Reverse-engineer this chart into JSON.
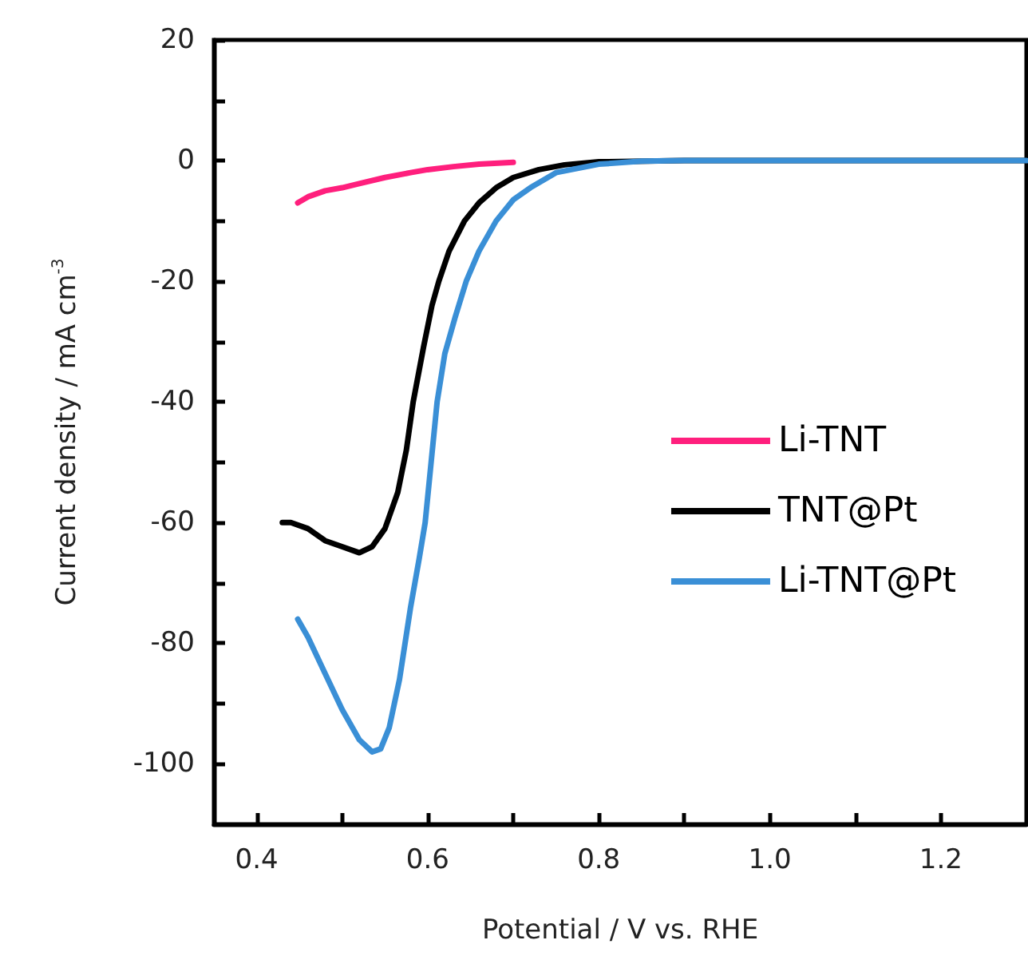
{
  "chart_data": {
    "type": "line",
    "xlabel": "Potential / V vs. RHE",
    "ylabel": "Current density / mA cm$^{-3}$",
    "xlim": [
      0.35,
      1.3
    ],
    "ylim": [
      -110,
      20
    ],
    "xticks": [
      {
        "value": 0.4,
        "label": "0.4"
      },
      {
        "value": 0.5,
        "label": null
      },
      {
        "value": 0.6,
        "label": "0.6"
      },
      {
        "value": 0.7,
        "label": null
      },
      {
        "value": 0.8,
        "label": "0.8"
      },
      {
        "value": 0.9,
        "label": null
      },
      {
        "value": 1.0,
        "label": "1.0"
      },
      {
        "value": 1.1,
        "label": null
      },
      {
        "value": 1.2,
        "label": "1.2"
      }
    ],
    "yticks": [
      -100,
      {
        "value": -90,
        "label": null
      },
      -80,
      {
        "value": -70,
        "label": null
      },
      -60,
      {
        "value": -50,
        "label": null
      },
      -40,
      {
        "value": -30,
        "label": null
      },
      -20,
      {
        "value": -10,
        "label": null
      },
      0,
      {
        "value": 10,
        "label": null
      },
      20
    ],
    "grid": false,
    "legend": "right",
    "marker": "none",
    "line_style": "solid",
    "series": [
      {
        "name": "Li-TNT",
        "color": "#ff1f7d",
        "x": [
          0.448,
          0.46,
          0.48,
          0.5,
          0.52,
          0.55,
          0.58,
          0.6,
          0.63,
          0.66,
          0.7
        ],
        "values": [
          -7,
          -6,
          -5,
          -4.5,
          -3.8,
          -2.8,
          -2,
          -1.5,
          -1,
          -0.6,
          -0.3
        ]
      },
      {
        "name": "TNT@Pt",
        "color": "#000000",
        "x": [
          0.43,
          0.44,
          0.46,
          0.48,
          0.5,
          0.52,
          0.535,
          0.55,
          0.565,
          0.575,
          0.583,
          0.595,
          0.605,
          0.613,
          0.625,
          0.643,
          0.66,
          0.68,
          0.7,
          0.73,
          0.76,
          0.8,
          0.9,
          1.0,
          1.3
        ],
        "values": [
          -60,
          -60,
          -61,
          -63,
          -64,
          -65,
          -64,
          -61,
          -55,
          -48,
          -40,
          -31,
          -24,
          -20,
          -15,
          -10,
          -7,
          -4.5,
          -2.8,
          -1.5,
          -0.7,
          -0.2,
          0,
          0,
          0
        ]
      },
      {
        "name": "Li-TNT@Pt",
        "color": "#3a8fd6",
        "x": [
          0.448,
          0.46,
          0.48,
          0.5,
          0.52,
          0.535,
          0.545,
          0.555,
          0.567,
          0.58,
          0.59,
          0.597,
          0.604,
          0.611,
          0.62,
          0.632,
          0.645,
          0.66,
          0.68,
          0.7,
          0.72,
          0.75,
          0.8,
          0.85,
          0.9,
          1.0,
          1.3
        ],
        "values": [
          -76,
          -79,
          -85,
          -91,
          -96,
          -98,
          -97.5,
          -94,
          -86,
          -74,
          -66,
          -60,
          -50,
          -40,
          -32,
          -26,
          -20,
          -15,
          -10,
          -6.5,
          -4.5,
          -2,
          -0.6,
          -0.1,
          0,
          0,
          0
        ]
      }
    ]
  }
}
